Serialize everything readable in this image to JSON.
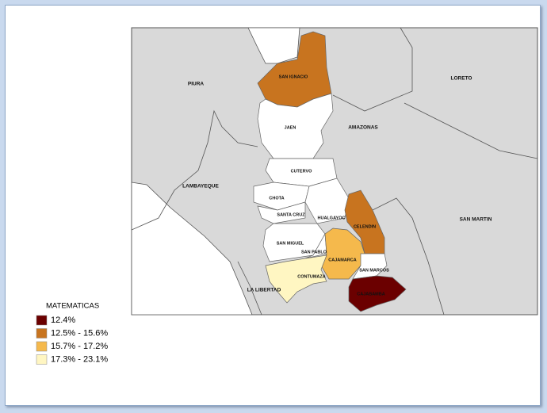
{
  "map": {
    "regions": [
      {
        "label": "SAN IGNACIO",
        "color": "#c8741f"
      },
      {
        "label": "JAEN",
        "color": "#ffffff"
      },
      {
        "label": "CUTERVO",
        "color": "#ffffff"
      },
      {
        "label": "CHOTA",
        "color": "#ffffff"
      },
      {
        "label": "SANTA CRUZ",
        "color": "#ffffff"
      },
      {
        "label": "HUALGAYOC",
        "color": "#ffffff"
      },
      {
        "label": "CELENDIN",
        "color": "#c8741f"
      },
      {
        "label": "SAN MIGUEL",
        "color": "#ffffff"
      },
      {
        "label": "SAN PABLO",
        "color": "#ffffff"
      },
      {
        "label": "CAJAMARCA",
        "color": "#f5b94c"
      },
      {
        "label": "CONTUMAZA",
        "color": "#fff6c2"
      },
      {
        "label": "SAN MARCOS",
        "color": "#ffffff"
      },
      {
        "label": "CAJABAMBA",
        "color": "#6b0000"
      }
    ],
    "neighbors": [
      "PIURA",
      "LAMBAYEQUE",
      "AMAZONAS",
      "LORETO",
      "SAN MARTIN",
      "LA LIBERTAD"
    ]
  },
  "legend": {
    "title": "MATEMATICAS",
    "items": [
      {
        "label": "12.4%",
        "color": "#6b0000"
      },
      {
        "label": "12.5% - 15.6%",
        "color": "#c8741f"
      },
      {
        "label": "15.7% - 17.2%",
        "color": "#f5b94c"
      },
      {
        "label": "17.3% - 23.1%",
        "color": "#fff6c2"
      }
    ]
  }
}
